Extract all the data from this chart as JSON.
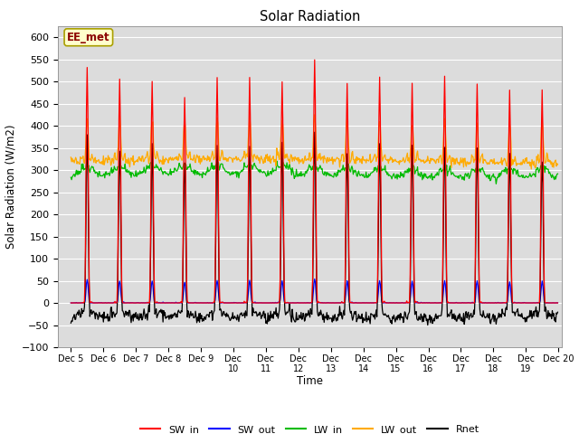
{
  "title": "Solar Radiation",
  "ylabel": "Solar Radiation (W/m2)",
  "xlabel": "Time",
  "ylim": [
    -100,
    625
  ],
  "yticks": [
    -100,
    -50,
    0,
    50,
    100,
    150,
    200,
    250,
    300,
    350,
    400,
    450,
    500,
    550,
    600
  ],
  "xlim_days": [
    4.6,
    20.1
  ],
  "xtick_days": [
    5,
    6,
    7,
    8,
    9,
    10,
    11,
    12,
    13,
    14,
    15,
    16,
    17,
    18,
    19,
    20
  ],
  "xtick_labels": [
    "Dec 5",
    "Dec 6",
    "Dec 7",
    "Dec 8",
    "Dec 9",
    "Dec 10",
    "Dec 11",
    "Dec 12",
    "Dec 13",
    "Dec 14",
    "Dec 15",
    "Dec 16",
    "Dec 17",
    "Dec 18",
    "Dec 19",
    "Dec 20"
  ],
  "colors": {
    "SW_in": "#ff0000",
    "SW_out": "#0000ff",
    "LW_in": "#00bb00",
    "LW_out": "#ffaa00",
    "Rnet": "#000000"
  },
  "bg_color": "#dcdcdc",
  "annotation_text": "EE_met",
  "annotation_color": "#8b0000",
  "annotation_bg": "#ffffcc",
  "annotation_border": "#aaa000"
}
